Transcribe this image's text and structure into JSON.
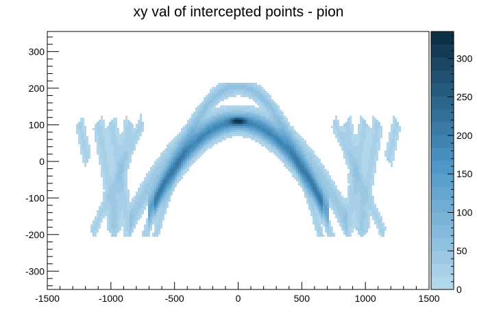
{
  "chart_data": {
    "type": "heatmap",
    "title": "xy val of intercepted points - pion",
    "xlabel": "",
    "ylabel": "",
    "xlim": [
      -1500,
      1500
    ],
    "ylim": [
      -350,
      355
    ],
    "x_ticks": [
      -1500,
      -1000,
      -500,
      0,
      500,
      1000,
      1500
    ],
    "y_ticks": [
      -300,
      -200,
      -100,
      0,
      100,
      200,
      300
    ],
    "x_tick_labels": [
      "-1500",
      "-1000",
      "-500",
      "0",
      "500",
      "1000",
      "1500"
    ],
    "y_tick_labels": [
      "-300",
      "-200",
      "-100",
      "0",
      "100",
      "200",
      "300"
    ],
    "z_range": [
      0,
      335
    ],
    "z_ticks": [
      0,
      50,
      100,
      150,
      200,
      250,
      300
    ],
    "z_tick_labels": [
      "0",
      "50",
      "100",
      "150",
      "200",
      "250",
      "300"
    ],
    "colorbar_levels": 20,
    "colors": {
      "low": "#b7d9ee",
      "mid": "#4a94c5",
      "high": "#0b2c44"
    },
    "grid": false,
    "legend": "none",
    "bands": [
      {
        "name": "",
        "shape": "arch",
        "apex": [
          0,
          110
        ],
        "half_span": 650,
        "drop": 110,
        "weight": 130
      },
      {
        "name": "",
        "shape": "arch",
        "apex": [
          0,
          95
        ],
        "half_span": 600,
        "drop": 95,
        "weight": 70
      },
      {
        "name": "",
        "shape": "arch",
        "apex": [
          0,
          130
        ],
        "half_span": 780,
        "drop": 130,
        "weight": 45
      },
      {
        "name": "",
        "shape": "arch",
        "apex": [
          0,
          210
        ],
        "half_span": 900,
        "drop": 420,
        "weight": 30
      },
      {
        "name": "",
        "shape": "arch",
        "apex": [
          0,
          200
        ],
        "half_span": 1000,
        "drop": 400,
        "weight": 28
      },
      {
        "name": "",
        "shape": "line",
        "from": [
          -1250,
          110
        ],
        "to": [
          -1180,
          0
        ],
        "weight": 20
      },
      {
        "name": "",
        "shape": "line",
        "from": [
          -1100,
          110
        ],
        "to": [
          -950,
          -200
        ],
        "weight": 22
      },
      {
        "name": "",
        "shape": "line",
        "from": [
          -1000,
          110
        ],
        "to": [
          -850,
          -200
        ],
        "weight": 22
      },
      {
        "name": "",
        "shape": "line",
        "from": [
          -850,
          110
        ],
        "to": [
          -1000,
          -200
        ],
        "weight": 22
      },
      {
        "name": "",
        "shape": "line",
        "from": [
          -750,
          110
        ],
        "to": [
          -1150,
          -200
        ],
        "weight": 20
      },
      {
        "name": "",
        "shape": "line",
        "from": [
          1250,
          110
        ],
        "to": [
          1180,
          0
        ],
        "weight": 20
      },
      {
        "name": "",
        "shape": "line",
        "from": [
          1100,
          110
        ],
        "to": [
          950,
          -200
        ],
        "weight": 22
      },
      {
        "name": "",
        "shape": "line",
        "from": [
          1000,
          110
        ],
        "to": [
          850,
          -200
        ],
        "weight": 22
      },
      {
        "name": "",
        "shape": "line",
        "from": [
          850,
          110
        ],
        "to": [
          1000,
          -200
        ],
        "weight": 22
      },
      {
        "name": "",
        "shape": "line",
        "from": [
          750,
          110
        ],
        "to": [
          1150,
          -200
        ],
        "weight": 20
      }
    ],
    "peak": {
      "x": 0,
      "y": 110,
      "value": 320
    }
  }
}
